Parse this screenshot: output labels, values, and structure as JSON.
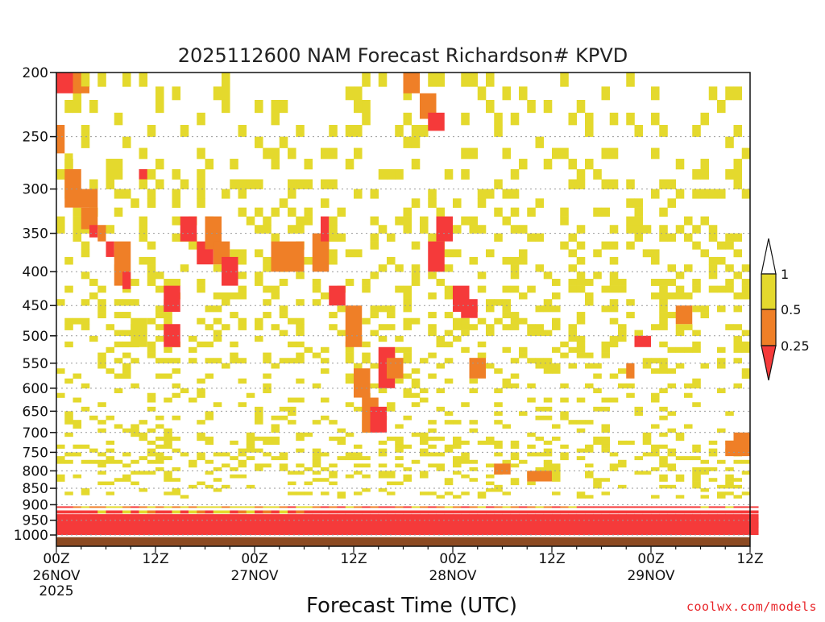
{
  "colors": {
    "red": "#f53a3a",
    "orange": "#ef7f27",
    "yellow": "#e4d92d",
    "brown": "#8c4a22",
    "grid": "#999999",
    "credit": "#e8262a"
  },
  "footer": {
    "credit": "coolwx.com/models"
  },
  "chart_data": {
    "type": "heatmap",
    "title": "2025112600 NAM Forecast Richardson# KPVD",
    "xlabel": "Forecast Time (UTC)",
    "ylabel": "",
    "x_unit": "forecast hour",
    "xlim": [
      0,
      84
    ],
    "y_scale": "log",
    "ylim": [
      1000,
      200
    ],
    "y_ticks": [
      1000,
      950,
      900,
      850,
      800,
      750,
      700,
      650,
      600,
      550,
      500,
      450,
      400,
      350,
      300,
      250,
      200
    ],
    "y_tick_labels": [
      "1000",
      "950",
      "900",
      "850",
      "800",
      "750",
      "700",
      "650",
      "600",
      "550",
      "500",
      "450",
      "400",
      "350",
      "300",
      "250",
      "200"
    ],
    "x_ticks": [
      {
        "hour": 0,
        "label": "00Z",
        "date": "26NOV",
        "year": "2025"
      },
      {
        "hour": 12,
        "label": "12Z",
        "date": "",
        "year": ""
      },
      {
        "hour": 24,
        "label": "00Z",
        "date": "27NOV",
        "year": ""
      },
      {
        "hour": 36,
        "label": "12Z",
        "date": "",
        "year": ""
      },
      {
        "hour": 48,
        "label": "00Z",
        "date": "28NOV",
        "year": ""
      },
      {
        "hour": 60,
        "label": "12Z",
        "date": "",
        "year": ""
      },
      {
        "hour": 72,
        "label": "00Z",
        "date": "29NOV",
        "year": ""
      },
      {
        "hour": 84,
        "label": "12Z",
        "date": "",
        "year": ""
      }
    ],
    "grid": "horizontal dotted at pressure levels",
    "legend": {
      "placement": "right",
      "labels": [
        "1",
        "0.5",
        "0.25"
      ],
      "bins": [
        {
          "min": 0.5,
          "max": 1,
          "color": "yellow"
        },
        {
          "min": 0.25,
          "max": 0.5,
          "color": "orange"
        },
        {
          "min": null,
          "max": 0.25,
          "color": "red"
        }
      ]
    },
    "surface_layer": {
      "from_hPa": 1000,
      "color": "brown"
    },
    "band_rows_hPa": [
      [
        1000,
        1000,
        960
      ],
      [
        985,
        975,
        955
      ],
      [
        968,
        960,
        942
      ],
      [
        952,
        945,
        930
      ],
      [
        935,
        928,
        918
      ],
      [
        918,
        910,
        905
      ]
    ],
    "band_class_by_hour": [
      "RRRRRR",
      "RRRRRR",
      "RRRRRO",
      "RRRRRY",
      "RRRRRO",
      "RRRRYO",
      "RRRRRY",
      "RRRRRY",
      "RRRRYO",
      "RRRRRR",
      "RRRRYO",
      "RRRROY",
      "RRRRRO",
      "RRRRRY",
      "RRRRYO",
      "RRRRRY",
      "RRRRYO",
      "RRRROY",
      "RRRRRY",
      "RRRRYY",
      "RRRRYO",
      "RRRRRY",
      "RRRROY",
      "RRRRYY",
      "RRRRRO",
      "RRRROY",
      "RRRRRY",
      "RRRRYO",
      "RRRRRR",
      "RRRROY",
      "RRRRRY",
      "RRRRRO",
      "RRRRRR",
      "RRRRRO",
      "RRRRRR",
      "RRRRRY",
      "RRRRRO",
      "RRRRRR",
      "RRRRRO",
      "RRRRRR",
      "RRRRRR",
      "RRRRRO",
      "RRRRRR",
      "RRRRRY",
      "RRRRRO",
      "RRRRRR",
      "RRRRRO",
      "RRRRRY",
      "RRRRRO",
      "RRRRRR",
      "RRRRRO",
      "RRRRRY",
      "RRRRRR",
      "RRRRRO",
      "RRRRRY",
      "RRRRRO",
      "RRRRRR",
      "RRRRRO",
      "RRRRRY",
      "RRRRRO",
      "RRRRRR",
      "RRRRRO",
      "RRRRRY",
      "RRRRRR",
      "RRRRRR",
      "RRRRRR",
      "RRRRRR",
      "RRRRRR",
      "RRRRRR",
      "RRRRRR",
      "RRRRRR",
      "RRRRRR",
      "RRRRRR",
      "RRRRRR",
      "RRRRRR",
      "RRRRRR",
      "RRRRRR",
      "RRRRRR",
      "RRRRRY",
      "RRRRRR",
      "RRRRRR",
      "RRRRRY",
      "RRRRRR",
      "RRRRRR",
      "RRRRRR"
    ],
    "patches": [
      {
        "h": [
          0,
          3
        ],
        "p": [
          200,
          215
        ],
        "c": "red"
      },
      {
        "h": [
          2,
          4
        ],
        "p": [
          200,
          215
        ],
        "c": "orange"
      },
      {
        "h": [
          3,
          4
        ],
        "p": [
          200,
          210
        ],
        "c": "yellow"
      },
      {
        "h": [
          0,
          1
        ],
        "p": [
          240,
          265
        ],
        "c": "orange"
      },
      {
        "h": [
          1,
          2
        ],
        "p": [
          265,
          280
        ],
        "c": "yellow"
      },
      {
        "h": [
          1,
          3
        ],
        "p": [
          280,
          320
        ],
        "c": "orange"
      },
      {
        "h": [
          2,
          5
        ],
        "p": [
          300,
          320
        ],
        "c": "orange"
      },
      {
        "h": [
          3,
          5
        ],
        "p": [
          320,
          345
        ],
        "c": "orange"
      },
      {
        "h": [
          4,
          5
        ],
        "p": [
          340,
          355
        ],
        "c": "red"
      },
      {
        "h": [
          5,
          6
        ],
        "p": [
          340,
          360
        ],
        "c": "orange"
      },
      {
        "h": [
          6,
          7
        ],
        "p": [
          360,
          380
        ],
        "c": "red"
      },
      {
        "h": [
          7,
          9
        ],
        "p": [
          360,
          420
        ],
        "c": "orange"
      },
      {
        "h": [
          8,
          9
        ],
        "p": [
          400,
          425
        ],
        "c": "red"
      },
      {
        "h": [
          9,
          11
        ],
        "p": [
          470,
          520
        ],
        "c": "yellow"
      },
      {
        "h": [
          10,
          11
        ],
        "p": [
          280,
          290
        ],
        "c": "red"
      },
      {
        "h": [
          13,
          15
        ],
        "p": [
          480,
          520
        ],
        "c": "red"
      },
      {
        "h": [
          13,
          15
        ],
        "p": [
          420,
          460
        ],
        "c": "red"
      },
      {
        "h": [
          15,
          17
        ],
        "p": [
          330,
          360
        ],
        "c": "red"
      },
      {
        "h": [
          17,
          19
        ],
        "p": [
          360,
          390
        ],
        "c": "red"
      },
      {
        "h": [
          18,
          20
        ],
        "p": [
          330,
          370
        ],
        "c": "orange"
      },
      {
        "h": [
          19,
          21
        ],
        "p": [
          360,
          390
        ],
        "c": "orange"
      },
      {
        "h": [
          20,
          22
        ],
        "p": [
          380,
          420
        ],
        "c": "red"
      },
      {
        "h": [
          26,
          28
        ],
        "p": [
          360,
          400
        ],
        "c": "orange"
      },
      {
        "h": [
          28,
          30
        ],
        "p": [
          360,
          400
        ],
        "c": "orange"
      },
      {
        "h": [
          31,
          33
        ],
        "p": [
          350,
          400
        ],
        "c": "orange"
      },
      {
        "h": [
          32,
          33
        ],
        "p": [
          330,
          360
        ],
        "c": "red"
      },
      {
        "h": [
          33,
          35
        ],
        "p": [
          420,
          450
        ],
        "c": "red"
      },
      {
        "h": [
          35,
          37
        ],
        "p": [
          450,
          520
        ],
        "c": "orange"
      },
      {
        "h": [
          36,
          38
        ],
        "p": [
          560,
          620
        ],
        "c": "orange"
      },
      {
        "h": [
          37,
          39
        ],
        "p": [
          620,
          700
        ],
        "c": "orange"
      },
      {
        "h": [
          38,
          40
        ],
        "p": [
          640,
          700
        ],
        "c": "red"
      },
      {
        "h": [
          39,
          41
        ],
        "p": [
          520,
          600
        ],
        "c": "red"
      },
      {
        "h": [
          40,
          42
        ],
        "p": [
          540,
          580
        ],
        "c": "orange"
      },
      {
        "h": [
          42,
          44
        ],
        "p": [
          200,
          215
        ],
        "c": "orange"
      },
      {
        "h": [
          44,
          46
        ],
        "p": [
          215,
          235
        ],
        "c": "orange"
      },
      {
        "h": [
          45,
          47
        ],
        "p": [
          230,
          245
        ],
        "c": "red"
      },
      {
        "h": [
          45,
          47
        ],
        "p": [
          360,
          400
        ],
        "c": "red"
      },
      {
        "h": [
          46,
          48
        ],
        "p": [
          330,
          360
        ],
        "c": "red"
      },
      {
        "h": [
          48,
          50
        ],
        "p": [
          420,
          460
        ],
        "c": "red"
      },
      {
        "h": [
          49,
          51
        ],
        "p": [
          440,
          470
        ],
        "c": "red"
      },
      {
        "h": [
          50,
          52
        ],
        "p": [
          540,
          580
        ],
        "c": "orange"
      },
      {
        "h": [
          53,
          55
        ],
        "p": [
          780,
          810
        ],
        "c": "orange"
      },
      {
        "h": [
          57,
          60
        ],
        "p": [
          800,
          830
        ],
        "c": "orange"
      },
      {
        "h": [
          70,
          72
        ],
        "p": [
          500,
          520
        ],
        "c": "red"
      },
      {
        "h": [
          69,
          70
        ],
        "p": [
          550,
          580
        ],
        "c": "orange"
      },
      {
        "h": [
          75,
          77
        ],
        "p": [
          450,
          480
        ],
        "c": "orange"
      },
      {
        "h": [
          81,
          84
        ],
        "p": [
          720,
          760
        ],
        "c": "orange"
      },
      {
        "h": [
          82,
          84
        ],
        "p": [
          700,
          740
        ],
        "c": "orange"
      }
    ]
  }
}
